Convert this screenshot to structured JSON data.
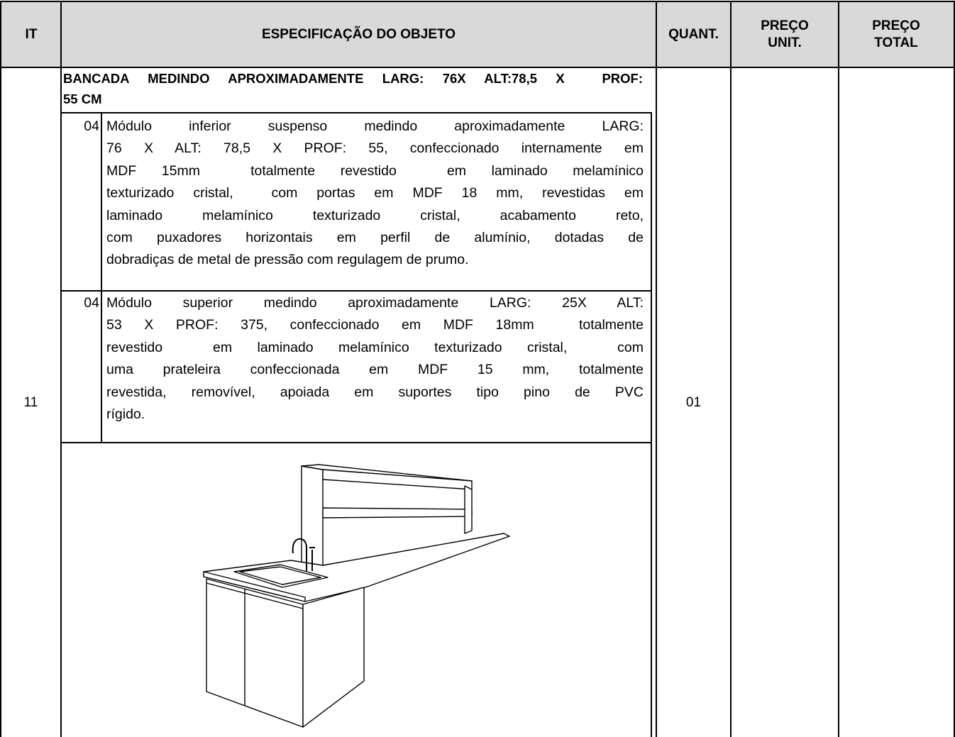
{
  "header": {
    "columns": [
      [
        "IT"
      ],
      [
        "ESPECIFICAÇÃO DO OBJETO"
      ],
      [
        "QUANT."
      ],
      [
        "PREÇO",
        "UNIT."
      ],
      [
        "PREÇO",
        "TOTAL"
      ]
    ]
  },
  "rows": [
    {
      "it": "11",
      "title_lines": [
        "BANCADA MEDINDO APROXIMADAMENTE LARG: 76X ALT:78,5 X  PROF:",
        "55 CM"
      ],
      "items": [
        {
          "qty": "04",
          "lines": [
            "Módulo inferior suspenso medindo aproximadamente LARG:",
            "76 X ALT: 78,5 X PROF: 55, confeccionado internamente em",
            "MDF 15mm  totalmente revestido  em laminado melamínico",
            "texturizado cristal,  com portas em MDF 18 mm, revestidas em",
            "laminado melamínico texturizado cristal, acabamento reto,",
            "com puxadores horizontais em perfil de alumínio, dotadas de",
            "dobradiças de metal de pressão com regulagem de prumo."
          ]
        },
        {
          "qty": "04",
          "lines": [
            "Módulo superior medindo aproximadamente LARG: 25X ALT:",
            "53 X PROF: 375, confeccionado em MDF 18mm  totalmente",
            "revestido  em laminado melamínico texturizado cristal,  com",
            "uma prateleira confeccionada em MDF 15 mm, totalmente",
            "revestida, removível, apoiada em suportes tipo pino de PVC",
            "rígido."
          ]
        }
      ],
      "quantity": "01"
    }
  ]
}
